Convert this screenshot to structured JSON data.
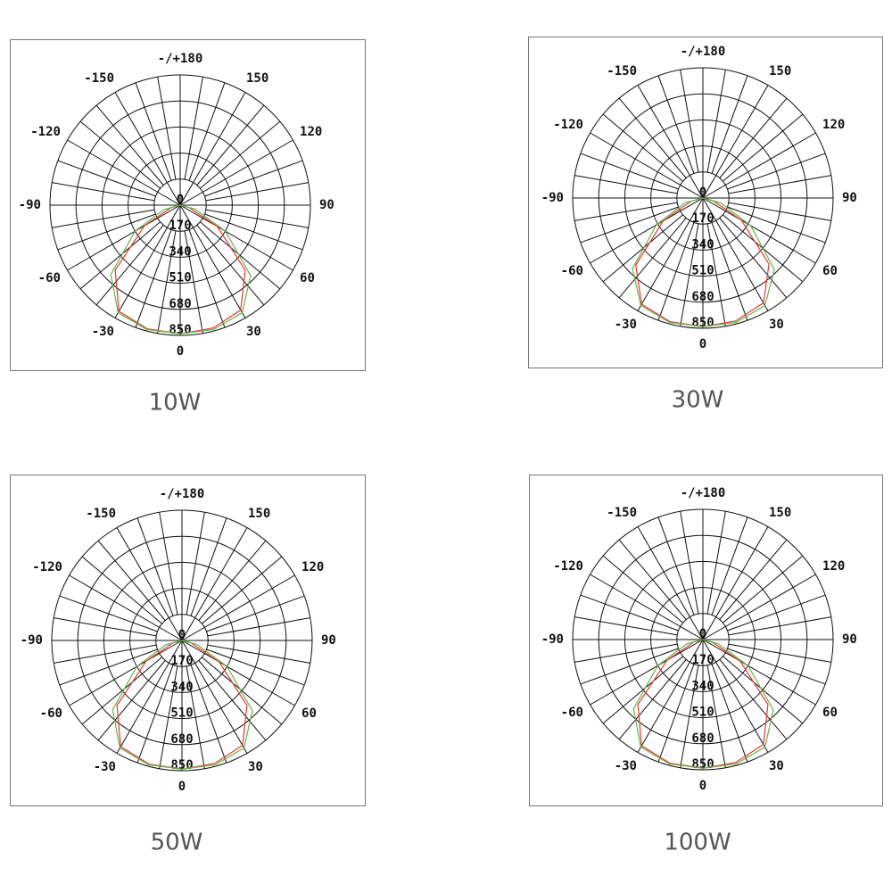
{
  "chart_data": [
    {
      "type": "polar",
      "title": "10W",
      "xticks": [
        0,
        30,
        60,
        90,
        120,
        150,
        {
          "value": 180,
          "label": "-/+180"
        },
        -150,
        -120,
        -90,
        -60,
        -30
      ],
      "rlim": [
        0,
        850
      ],
      "rticks": [
        0,
        170,
        340,
        510,
        680,
        850
      ],
      "x": [
        -90,
        -75,
        -60,
        -45,
        -30,
        -15,
        0,
        15,
        30,
        45,
        60,
        75,
        90
      ],
      "series": [
        {
          "color": "#e03a3a",
          "values": [
            0,
            60,
            270,
            600,
            800,
            835,
            840,
            830,
            790,
            600,
            280,
            60,
            0
          ]
        },
        {
          "color": "#66b347",
          "values": [
            0,
            110,
            340,
            640,
            810,
            840,
            840,
            840,
            810,
            650,
            340,
            100,
            0
          ]
        }
      ]
    },
    {
      "type": "polar",
      "title": "30W",
      "xticks": [
        0,
        30,
        60,
        90,
        120,
        150,
        {
          "value": 180,
          "label": "-/+180"
        },
        -150,
        -120,
        -90,
        -60,
        -30
      ],
      "rlim": [
        0,
        850
      ],
      "rticks": [
        0,
        170,
        340,
        510,
        680,
        850
      ],
      "x": [
        -90,
        -75,
        -60,
        -45,
        -30,
        -15,
        0,
        15,
        30,
        45,
        60,
        75,
        90
      ],
      "series": [
        {
          "color": "#e03a3a",
          "values": [
            0,
            80,
            300,
            620,
            800,
            835,
            840,
            830,
            790,
            610,
            290,
            70,
            0
          ]
        },
        {
          "color": "#66b347",
          "values": [
            0,
            120,
            350,
            650,
            810,
            840,
            840,
            840,
            810,
            660,
            360,
            120,
            0
          ]
        }
      ]
    },
    {
      "type": "polar",
      "title": "50W",
      "xticks": [
        0,
        30,
        60,
        90,
        120,
        150,
        {
          "value": 180,
          "label": "-/+180"
        },
        -150,
        -120,
        -90,
        -60,
        -30
      ],
      "rlim": [
        0,
        850
      ],
      "rticks": [
        0,
        170,
        340,
        510,
        680,
        850
      ],
      "x": [
        -90,
        -75,
        -60,
        -45,
        -30,
        -15,
        0,
        15,
        30,
        45,
        60,
        75,
        90
      ],
      "series": [
        {
          "color": "#e03a3a",
          "values": [
            0,
            60,
            270,
            600,
            800,
            835,
            840,
            830,
            790,
            600,
            280,
            60,
            0
          ]
        },
        {
          "color": "#66b347",
          "values": [
            0,
            110,
            340,
            640,
            810,
            840,
            840,
            840,
            810,
            650,
            340,
            100,
            0
          ]
        }
      ]
    },
    {
      "type": "polar",
      "title": "100W",
      "xticks": [
        0,
        30,
        60,
        90,
        120,
        150,
        {
          "value": 180,
          "label": "-/+180"
        },
        -150,
        -120,
        -90,
        -60,
        -30
      ],
      "rlim": [
        0,
        850
      ],
      "rticks": [
        0,
        170,
        340,
        510,
        680,
        850
      ],
      "x": [
        -90,
        -75,
        -60,
        -45,
        -30,
        -15,
        0,
        15,
        30,
        45,
        60,
        75,
        90
      ],
      "series": [
        {
          "color": "#e03a3a",
          "values": [
            0,
            60,
            270,
            600,
            800,
            835,
            840,
            830,
            790,
            600,
            280,
            60,
            0
          ]
        },
        {
          "color": "#66b347",
          "values": [
            0,
            110,
            340,
            640,
            810,
            840,
            840,
            840,
            810,
            650,
            340,
            100,
            0
          ]
        }
      ]
    }
  ]
}
